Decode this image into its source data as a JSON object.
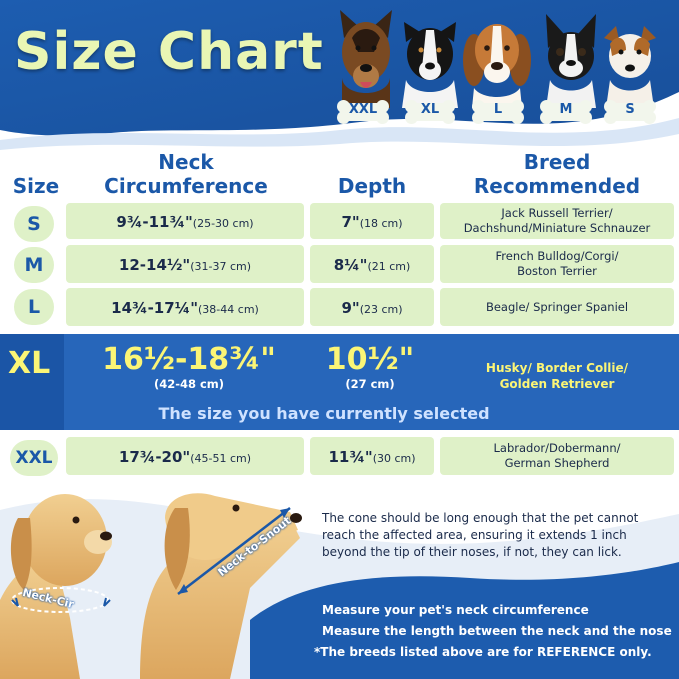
{
  "title": "Size Chart",
  "header": {
    "sizes": [
      "XXL",
      "XL",
      "L",
      "M",
      "S"
    ],
    "dogs": [
      "german-shepherd",
      "border-collie",
      "beagle",
      "boston-terrier",
      "jack-russell"
    ]
  },
  "columns": {
    "size": "Size",
    "neck_line1": "Neck",
    "neck_line2": "Circumference",
    "depth": "Depth",
    "breed_line1": "Breed",
    "breed_line2": "Recommended"
  },
  "rows": [
    {
      "size": "S",
      "neck": "9¾-11¾\"",
      "neck_cm": "(25-30 cm)",
      "depth": "7\"",
      "depth_cm": "(18 cm)",
      "breed_line1": "Jack Russell Terrier/",
      "breed_line2": "Dachshund/Miniature Schnauzer"
    },
    {
      "size": "M",
      "neck": "12-14½\"",
      "neck_cm": "(31-37 cm)",
      "depth": "8¼\"",
      "depth_cm": "(21 cm)",
      "breed_line1": "French Bulldog/Corgi/",
      "breed_line2": "Boston Terrier"
    },
    {
      "size": "L",
      "neck": "14¾-17¼\"",
      "neck_cm": "(38-44 cm)",
      "depth": "9\"",
      "depth_cm": "(23 cm)",
      "breed_line1": "Beagle/ Springer Spaniel",
      "breed_line2": ""
    },
    {
      "size": "XL",
      "neck": "16½-18¾\"",
      "neck_cm": "(42-48 cm)",
      "depth": "10½\"",
      "depth_cm": "(27 cm)",
      "breed_line1": "Husky/ Border Collie/",
      "breed_line2": "Golden Retriever"
    },
    {
      "size": "XXL",
      "neck": "17¾-20\"",
      "neck_cm": "(45-51 cm)",
      "depth": "11¾\"",
      "depth_cm": "(30 cm)",
      "breed_line1": "Labrador/Dobermann/",
      "breed_line2": "German Shepherd"
    }
  ],
  "selected_note": "The size you have currently selected",
  "photo_labels": {
    "neck_cir": "Neck-Cir",
    "neck_to_snout": "Neck-to-Snout"
  },
  "cone_note": "The cone should be long enough that the pet cannot reach the affected area, ensuring it extends 1 inch beyond the tip of their noses, if not, they can lick.",
  "instructions": [
    "Measure your pet's neck circumference",
    "Measure the length between the neck and the nose",
    "*The breeds listed above are for REFERENCE only."
  ],
  "colors": {
    "brand_blue": "#1b58a8",
    "row_green": "#dff1c8",
    "highlight_yellow": "#fbf576",
    "title_green": "#e9f6b4"
  }
}
